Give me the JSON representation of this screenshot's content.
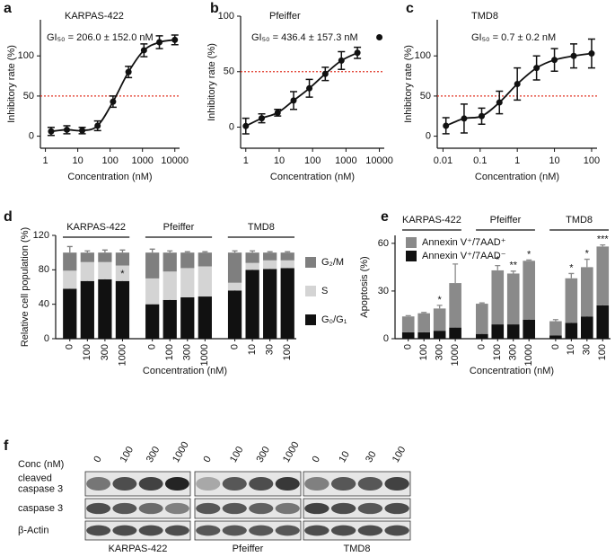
{
  "chart_data": [
    {
      "type": "scatter",
      "panel": "a",
      "title": "KARPAS-422",
      "annotation": "GI₅₀ = 206.0 ± 152.0 nM",
      "xlabel": "Concentration (nM)",
      "ylabel": "Inhibitory rate (%)",
      "xscale": "log",
      "xlim": [
        0.7,
        14000
      ],
      "ylim": [
        -15,
        145
      ],
      "xticks": [
        1,
        10,
        100,
        1000,
        10000
      ],
      "yticks": [
        0,
        50,
        100
      ],
      "reference_line": 50,
      "reference_color": "#e03020",
      "series": [
        {
          "color": "#111111",
          "fit_line": true,
          "x": [
            1.5,
            4.6,
            13.7,
            41,
            123,
            370,
            1111,
            3333,
            10000
          ],
          "values": [
            6,
            8,
            7,
            13,
            43,
            80,
            107,
            117,
            120
          ],
          "errors": [
            5,
            5,
            4,
            6,
            7,
            7,
            8,
            8,
            6
          ]
        }
      ]
    },
    {
      "type": "scatter",
      "panel": "b",
      "title": "Pfeiffer",
      "annotation": "GI₅₀ = 436.4 ± 157.3 nM",
      "xlabel": "Concentration (nM)",
      "ylabel": "Inhibitory rate (%)",
      "xscale": "log",
      "xlim": [
        0.7,
        14000
      ],
      "ylim": [
        -19,
        100
      ],
      "xticks": [
        1,
        10,
        100,
        1000,
        10000
      ],
      "yticks": [
        0,
        50,
        100
      ],
      "reference_line": 50,
      "reference_color": "#e03020",
      "series": [
        {
          "color": "#111111",
          "fit_line": true,
          "x": [
            1,
            3,
            9,
            27,
            80,
            240,
            730,
            2200
          ],
          "values": [
            1,
            8,
            13,
            24,
            35,
            48,
            60,
            67
          ],
          "errors": [
            7,
            4,
            3,
            8,
            8,
            6,
            8,
            5
          ]
        },
        {
          "color": "#111111",
          "fit_line": false,
          "x": [
            10000
          ],
          "values": [
            81
          ],
          "errors": [
            0
          ]
        }
      ]
    },
    {
      "type": "scatter",
      "panel": "c",
      "title": "TMD8",
      "annotation": "GI₅₀ = 0.7 ± 0.2 nM",
      "xlabel": "Concentration (nM)",
      "ylabel": "Inhibitory rate (%)",
      "xscale": "log",
      "xlim": [
        0.007,
        140
      ],
      "ylim": [
        -15,
        145
      ],
      "xticks": [
        0.01,
        0.1,
        1,
        10,
        100
      ],
      "yticks": [
        0,
        50,
        100
      ],
      "reference_line": 50,
      "reference_color": "#e03020",
      "series": [
        {
          "color": "#111111",
          "fit_line": true,
          "x": [
            0.012,
            0.037,
            0.11,
            0.33,
            1,
            3.3,
            10,
            33,
            100
          ],
          "values": [
            13,
            22,
            25,
            42,
            65,
            85,
            95,
            100,
            103
          ],
          "errors": [
            10,
            18,
            10,
            14,
            20,
            15,
            14,
            15,
            18
          ]
        }
      ]
    },
    {
      "type": "bar",
      "stacked": true,
      "panel": "d",
      "xlabel": "Concentration (nM)",
      "ylabel": "Relative cell population (%)",
      "ylim": [
        0,
        120
      ],
      "yticks": [
        0,
        40,
        80,
        120
      ],
      "legend": "right",
      "groups": [
        {
          "name": "KARPAS-422",
          "categories": [
            "0",
            "100",
            "300",
            "1000"
          ]
        },
        {
          "name": "Pfeiffer",
          "categories": [
            "0",
            "100",
            "300",
            "1000"
          ]
        },
        {
          "name": "TMD8",
          "categories": [
            "0",
            "10",
            "30",
            "100"
          ]
        }
      ],
      "series": [
        {
          "name": "G₀/G₁",
          "color": "#111111",
          "values": [
            58,
            67,
            69,
            67,
            40,
            45,
            48,
            49,
            56,
            80,
            81,
            82
          ],
          "errors": [
            2,
            2,
            2,
            2,
            4,
            2,
            1,
            2,
            7,
            3,
            2,
            2
          ]
        },
        {
          "name": "S",
          "color": "#d4d4d4",
          "values": [
            21,
            22,
            20,
            18,
            30,
            33,
            34,
            35,
            9,
            8,
            10,
            9
          ],
          "errors": [
            4,
            3,
            3,
            3,
            4,
            3,
            3,
            4,
            2,
            2,
            2,
            1
          ]
        },
        {
          "name": "G₂/M",
          "color": "#7f7f7f",
          "values": [
            21,
            11,
            11,
            15,
            30,
            22,
            18,
            16,
            35,
            12,
            9,
            9
          ],
          "errors": [
            7,
            2,
            3,
            3,
            4,
            2,
            1,
            1,
            2,
            2,
            1,
            1
          ]
        }
      ],
      "significance": [
        null,
        null,
        null,
        "*",
        null,
        null,
        null,
        null,
        null,
        null,
        null,
        null
      ],
      "significance_series": 0
    },
    {
      "type": "bar",
      "stacked": true,
      "panel": "e",
      "xlabel": "Concentration (nM)",
      "ylabel": "Apoptosis (%)",
      "ylim": [
        0,
        65
      ],
      "yticks": [
        0,
        30,
        60
      ],
      "legend": "upper left",
      "groups": [
        {
          "name": "KARPAS-422",
          "categories": [
            "0",
            "100",
            "300",
            "1000"
          ]
        },
        {
          "name": "Pfeiffer",
          "categories": [
            "0",
            "100",
            "300",
            "1000"
          ]
        },
        {
          "name": "TMD8",
          "categories": [
            "0",
            "10",
            "30",
            "100"
          ]
        }
      ],
      "series": [
        {
          "name": "Annexin V⁺/7AAD⁻",
          "color": "#111111",
          "values": [
            4,
            4,
            5,
            7,
            3,
            9,
            9,
            12,
            2,
            10,
            14,
            21
          ],
          "errors": [
            1,
            1,
            2,
            1,
            0.5,
            1,
            0.5,
            1.5,
            0.5,
            1,
            1,
            1.5
          ]
        },
        {
          "name": "Annexin V⁺/7AAD⁺",
          "color": "#8a8a8a",
          "values": [
            10,
            12,
            14,
            28,
            19,
            34,
            32,
            37,
            9,
            28,
            31,
            37
          ],
          "errors": [
            0.5,
            0.5,
            2,
            12,
            0.5,
            3,
            1.5,
            0.5,
            1,
            3,
            5,
            1
          ]
        }
      ],
      "significance": [
        null,
        null,
        "*",
        null,
        null,
        "*",
        "**",
        "*",
        null,
        "*",
        "*",
        "***"
      ],
      "significance_series": 1
    }
  ],
  "blot": {
    "panel": "f",
    "conc_label": "Conc (nM)",
    "groups": [
      {
        "name": "KARPAS-422",
        "concentrations": [
          "0",
          "100",
          "300",
          "1000"
        ]
      },
      {
        "name": "Pfeiffer",
        "concentrations": [
          "0",
          "100",
          "300",
          "1000"
        ]
      },
      {
        "name": "TMD8",
        "concentrations": [
          "0",
          "10",
          "30",
          "100"
        ]
      }
    ],
    "rows": [
      [
        "cleaved",
        "caspase 3"
      ],
      [
        "caspase 3"
      ],
      [
        "β-Actin"
      ]
    ]
  }
}
